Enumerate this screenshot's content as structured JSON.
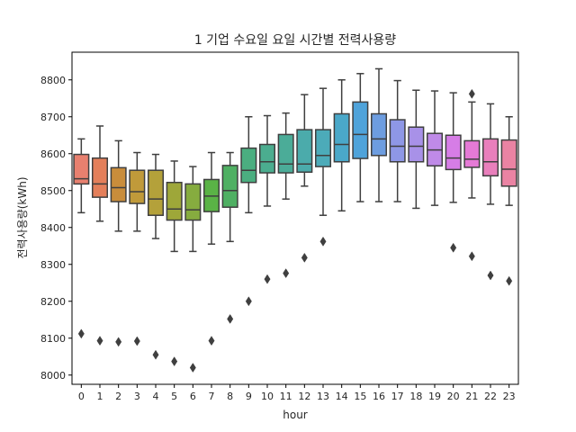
{
  "chart_data": {
    "type": "box",
    "title": "1 기업 수요일 요일 시간별 전력사용량",
    "xlabel": "hour",
    "ylabel": "전력사용량(kWh)",
    "ylim": [
      7975,
      8875
    ],
    "yticks": [
      8000,
      8100,
      8200,
      8300,
      8400,
      8500,
      8600,
      8700,
      8800
    ],
    "categories": [
      "0",
      "1",
      "2",
      "3",
      "4",
      "5",
      "6",
      "7",
      "8",
      "9",
      "10",
      "11",
      "12",
      "13",
      "14",
      "15",
      "16",
      "17",
      "18",
      "19",
      "20",
      "21",
      "22",
      "23"
    ],
    "colors": [
      "#e8806f",
      "#e47f5a",
      "#c98d3b",
      "#c09a3a",
      "#b4a13a",
      "#9ea739",
      "#86ac3f",
      "#5ab346",
      "#4fb063",
      "#4bae80",
      "#4bad8f",
      "#4bac98",
      "#4babab",
      "#4cabb9",
      "#4aa8c9",
      "#4fa3da",
      "#6d9de0",
      "#8e97e6",
      "#a891e8",
      "#bf8ae8",
      "#d67de6",
      "#e57ad6",
      "#e97fbc",
      "#ea83a3"
    ],
    "boxes": [
      {
        "lo": 8440,
        "q1": 8518,
        "med": 8532,
        "q3": 8598,
        "hi": 8640,
        "outliers": [
          8112
        ]
      },
      {
        "lo": 8417,
        "q1": 8482,
        "med": 8518,
        "q3": 8588,
        "hi": 8675,
        "outliers": [
          8093
        ]
      },
      {
        "lo": 8390,
        "q1": 8470,
        "med": 8508,
        "q3": 8562,
        "hi": 8635,
        "outliers": [
          8090
        ]
      },
      {
        "lo": 8390,
        "q1": 8465,
        "med": 8497,
        "q3": 8555,
        "hi": 8603,
        "outliers": [
          8092
        ]
      },
      {
        "lo": 8370,
        "q1": 8433,
        "med": 8477,
        "q3": 8555,
        "hi": 8598,
        "outliers": [
          8055
        ]
      },
      {
        "lo": 8335,
        "q1": 8420,
        "med": 8450,
        "q3": 8522,
        "hi": 8580,
        "outliers": [
          8037
        ]
      },
      {
        "lo": 8335,
        "q1": 8420,
        "med": 8448,
        "q3": 8518,
        "hi": 8565,
        "outliers": [
          8020
        ]
      },
      {
        "lo": 8355,
        "q1": 8443,
        "med": 8485,
        "q3": 8530,
        "hi": 8603,
        "outliers": [
          8093
        ]
      },
      {
        "lo": 8362,
        "q1": 8455,
        "med": 8500,
        "q3": 8568,
        "hi": 8603,
        "outliers": [
          8152
        ]
      },
      {
        "lo": 8440,
        "q1": 8522,
        "med": 8555,
        "q3": 8615,
        "hi": 8700,
        "outliers": [
          8200
        ]
      },
      {
        "lo": 8458,
        "q1": 8548,
        "med": 8578,
        "q3": 8625,
        "hi": 8703,
        "outliers": [
          8260
        ]
      },
      {
        "lo": 8477,
        "q1": 8548,
        "med": 8572,
        "q3": 8652,
        "hi": 8710,
        "outliers": [
          8276
        ]
      },
      {
        "lo": 8512,
        "q1": 8550,
        "med": 8572,
        "q3": 8665,
        "hi": 8760,
        "outliers": [
          8318
        ]
      },
      {
        "lo": 8433,
        "q1": 8565,
        "med": 8595,
        "q3": 8665,
        "hi": 8777,
        "outliers": [
          8362
        ]
      },
      {
        "lo": 8445,
        "q1": 8578,
        "med": 8625,
        "q3": 8708,
        "hi": 8800,
        "outliers": []
      },
      {
        "lo": 8470,
        "q1": 8587,
        "med": 8652,
        "q3": 8740,
        "hi": 8817,
        "outliers": []
      },
      {
        "lo": 8470,
        "q1": 8595,
        "med": 8640,
        "q3": 8708,
        "hi": 8830,
        "outliers": []
      },
      {
        "lo": 8470,
        "q1": 8578,
        "med": 8620,
        "q3": 8692,
        "hi": 8798,
        "outliers": []
      },
      {
        "lo": 8452,
        "q1": 8578,
        "med": 8620,
        "q3": 8672,
        "hi": 8772,
        "outliers": []
      },
      {
        "lo": 8460,
        "q1": 8567,
        "med": 8610,
        "q3": 8655,
        "hi": 8770,
        "outliers": []
      },
      {
        "lo": 8468,
        "q1": 8557,
        "med": 8588,
        "q3": 8650,
        "hi": 8765,
        "outliers": [
          8345
        ]
      },
      {
        "lo": 8480,
        "q1": 8563,
        "med": 8585,
        "q3": 8635,
        "hi": 8740,
        "outliers": [
          8322,
          8762
        ]
      },
      {
        "lo": 8463,
        "q1": 8540,
        "med": 8578,
        "q3": 8640,
        "hi": 8735,
        "outliers": [
          8270
        ]
      },
      {
        "lo": 8460,
        "q1": 8512,
        "med": 8558,
        "q3": 8637,
        "hi": 8700,
        "outliers": [
          8255
        ]
      }
    ]
  }
}
